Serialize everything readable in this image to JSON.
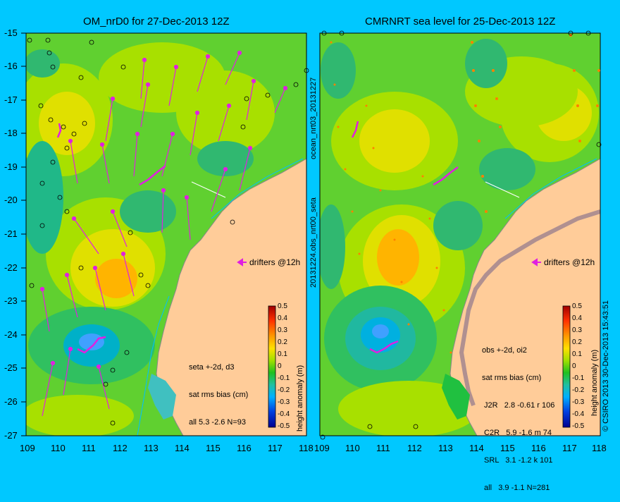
{
  "left_panel": {
    "title": "OM_nrD0 for 27-Dec-2013 12Z",
    "side_label": "20131224.obs_nrt00_seta",
    "legend": "drifters @12h",
    "stats": [
      "seta +-2d, d3",
      "sat rms bias (cm)",
      "all 5.3 -2.6 N=93"
    ],
    "colorbar_title": "height anomaly (m)"
  },
  "right_panel": {
    "title": "CMRNRT sea level  for 25-Dec-2013 12Z",
    "side_label": "ocean_nrt03_20131227",
    "legend": "drifters @12h",
    "stats": [
      "obs +-2d, oi2",
      "sat rms bias (cm)",
      " J2R   2.8 -0.61 r 106",
      " C2R   5.9 -1.6 m 74",
      " SRL   3.1 -1.2 k 101",
      " all   3.9 -1.1 N=281"
    ],
    "colorbar_title": "height anomaly (m)"
  },
  "copyright": "© CSIRO 2013   30-Dec-2013 15:43:51",
  "y_ticks": [
    "-15",
    "-16",
    "-17",
    "-18",
    "-19",
    "-20",
    "-21",
    "-22",
    "-23",
    "-24",
    "-25",
    "-26",
    "-27"
  ],
  "x_ticks_left": [
    "109",
    "110",
    "111",
    "112",
    "113",
    "114",
    "115",
    "116",
    "117",
    "118"
  ],
  "x_ticks_right": [
    "109",
    "110",
    "111",
    "112",
    "113",
    "114",
    "115",
    "116",
    "117",
    "118"
  ],
  "colorbar_ticks": [
    "0.5",
    "0.4",
    "0.3",
    "0.2",
    "0.1",
    "0",
    "-0.1",
    "-0.2",
    "-0.3",
    "-0.4",
    "-0.5"
  ],
  "colors": {
    "background": "#00c8ff",
    "land": "#ffcc99",
    "drifter": "#e020e0"
  }
}
